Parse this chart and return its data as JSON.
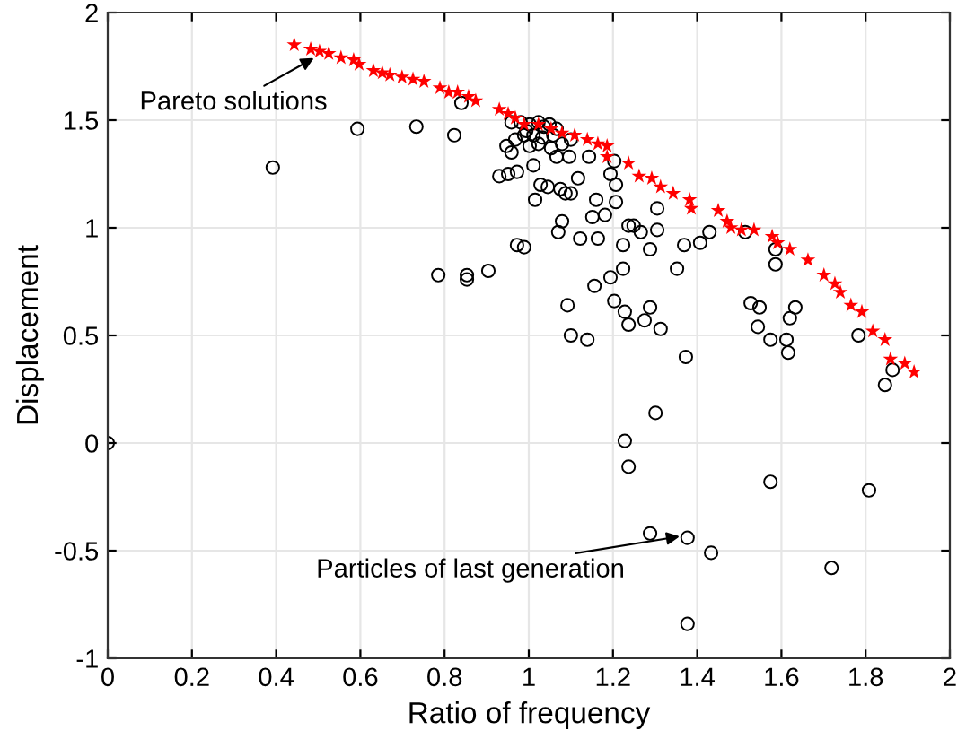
{
  "chart_data": {
    "type": "scatter",
    "xlabel": "Ratio of frequency",
    "ylabel": "Displacement",
    "xlim": [
      0,
      2
    ],
    "ylim": [
      -1,
      2
    ],
    "xticks": [
      0,
      0.2,
      0.4,
      0.6,
      0.8,
      1,
      1.2,
      1.4,
      1.6,
      1.8,
      2
    ],
    "yticks": [
      -1,
      -0.5,
      0,
      0.5,
      1,
      1.5,
      2
    ],
    "grid": true,
    "legend": false,
    "annotations": [
      {
        "text": "Pareto solutions",
        "x": 0.5,
        "y": 1.8
      },
      {
        "text": "Particles of last generation",
        "x": 1.37,
        "y": -0.43
      }
    ],
    "series": [
      {
        "color": "#000000",
        "marker": "circle",
        "x": [
          0.392,
          0.593,
          0.733,
          0.823,
          0.84,
          0.785,
          0.853,
          0.853,
          0.904,
          0.947,
          0.959,
          0.951,
          0.93,
          0.972,
          0.968,
          0.972,
          0.959,
          0.994,
          1.002,
          1.011,
          1.023,
          1.015,
          1.028,
          1.045,
          1.053,
          1.066,
          1.075,
          1.079,
          1.07,
          1.087,
          1.1,
          1.079,
          1.096,
          1.117,
          1.122,
          1.143,
          1.16,
          1.151,
          1.164,
          1.181,
          1.194,
          1.203,
          1.207,
          1.207,
          1.224,
          1.237,
          1.249,
          1.266,
          1.288,
          1.305,
          1.305,
          1.369,
          1.407,
          1.429,
          1.514,
          1.586,
          1.586,
          0.989,
          1.156,
          1.194,
          1.224,
          1.352,
          1.092,
          1.203,
          1.228,
          1.237,
          1.275,
          1.288,
          1.313,
          1.1,
          1.139,
          1.373,
          1.527,
          1.548,
          1.544,
          1.633,
          1.62,
          1.574,
          1.612,
          1.783,
          1.616,
          1.864,
          1.846,
          1.301,
          1.228,
          1.237,
          1.574,
          1.808,
          1.288,
          1.377,
          1.433,
          1.719,
          1.377,
          0,
          0.981,
          1.002,
          1.023,
          1.036,
          1.049,
          1.066,
          1.011,
          1.032,
          1.058,
          1.1,
          0.989
        ],
        "values": [
          1.28,
          1.46,
          1.47,
          1.43,
          1.58,
          0.78,
          0.78,
          0.76,
          0.8,
          1.38,
          1.35,
          1.25,
          1.24,
          1.26,
          1.41,
          0.92,
          1.49,
          1.45,
          1.38,
          1.29,
          1.39,
          1.13,
          1.2,
          1.19,
          1.37,
          1.33,
          1.18,
          1.03,
          0.98,
          1.16,
          1.16,
          1.39,
          1.33,
          1.23,
          0.95,
          1.33,
          1.13,
          1.05,
          0.95,
          1.06,
          1.25,
          1.31,
          1.12,
          1.2,
          0.92,
          1.01,
          1.01,
          0.98,
          0.9,
          0.99,
          1.09,
          0.92,
          0.93,
          0.98,
          0.98,
          0.9,
          0.83,
          0.91,
          0.73,
          0.77,
          0.81,
          0.81,
          0.64,
          0.66,
          0.61,
          0.55,
          0.57,
          0.63,
          0.53,
          0.5,
          0.48,
          0.4,
          0.65,
          0.63,
          0.54,
          0.63,
          0.58,
          0.48,
          0.48,
          0.5,
          0.42,
          0.34,
          0.27,
          0.14,
          0.01,
          -0.11,
          -0.18,
          -0.22,
          -0.42,
          -0.44,
          -0.51,
          -0.58,
          -0.84,
          0,
          1.49,
          1.48,
          1.49,
          1.47,
          1.48,
          1.46,
          1.43,
          1.42,
          1.43,
          1.41,
          1.43
        ]
      },
      {
        "color": "#ff0000",
        "marker": "star",
        "x": [
          0.443,
          0.482,
          0.503,
          0.525,
          0.554,
          0.584,
          0.597,
          0.631,
          0.652,
          0.67,
          0.699,
          0.725,
          0.751,
          0.789,
          0.81,
          0.831,
          0.857,
          0.874,
          0.93,
          0.951,
          0.968,
          0.989,
          1.023,
          1.053,
          1.079,
          1.109,
          1.139,
          1.164,
          1.186,
          1.186,
          1.237,
          1.262,
          1.292,
          1.313,
          1.343,
          1.382,
          1.386,
          1.45,
          1.471,
          1.48,
          1.505,
          1.535,
          1.578,
          1.591,
          1.62,
          1.663,
          1.701,
          1.727,
          1.74,
          1.765,
          1.791,
          1.817,
          1.846,
          1.859,
          1.893,
          1.915
        ],
        "values": [
          1.85,
          1.83,
          1.82,
          1.81,
          1.79,
          1.78,
          1.76,
          1.73,
          1.72,
          1.71,
          1.7,
          1.69,
          1.68,
          1.65,
          1.63,
          1.63,
          1.61,
          1.59,
          1.55,
          1.53,
          1.51,
          1.48,
          1.48,
          1.46,
          1.44,
          1.43,
          1.41,
          1.39,
          1.38,
          1.33,
          1.3,
          1.24,
          1.23,
          1.19,
          1.16,
          1.13,
          1.09,
          1.08,
          1.03,
          1.0,
          0.99,
          0.99,
          0.96,
          0.93,
          0.9,
          0.85,
          0.78,
          0.74,
          0.7,
          0.64,
          0.61,
          0.52,
          0.48,
          0.39,
          0.37,
          0.33
        ]
      }
    ]
  }
}
